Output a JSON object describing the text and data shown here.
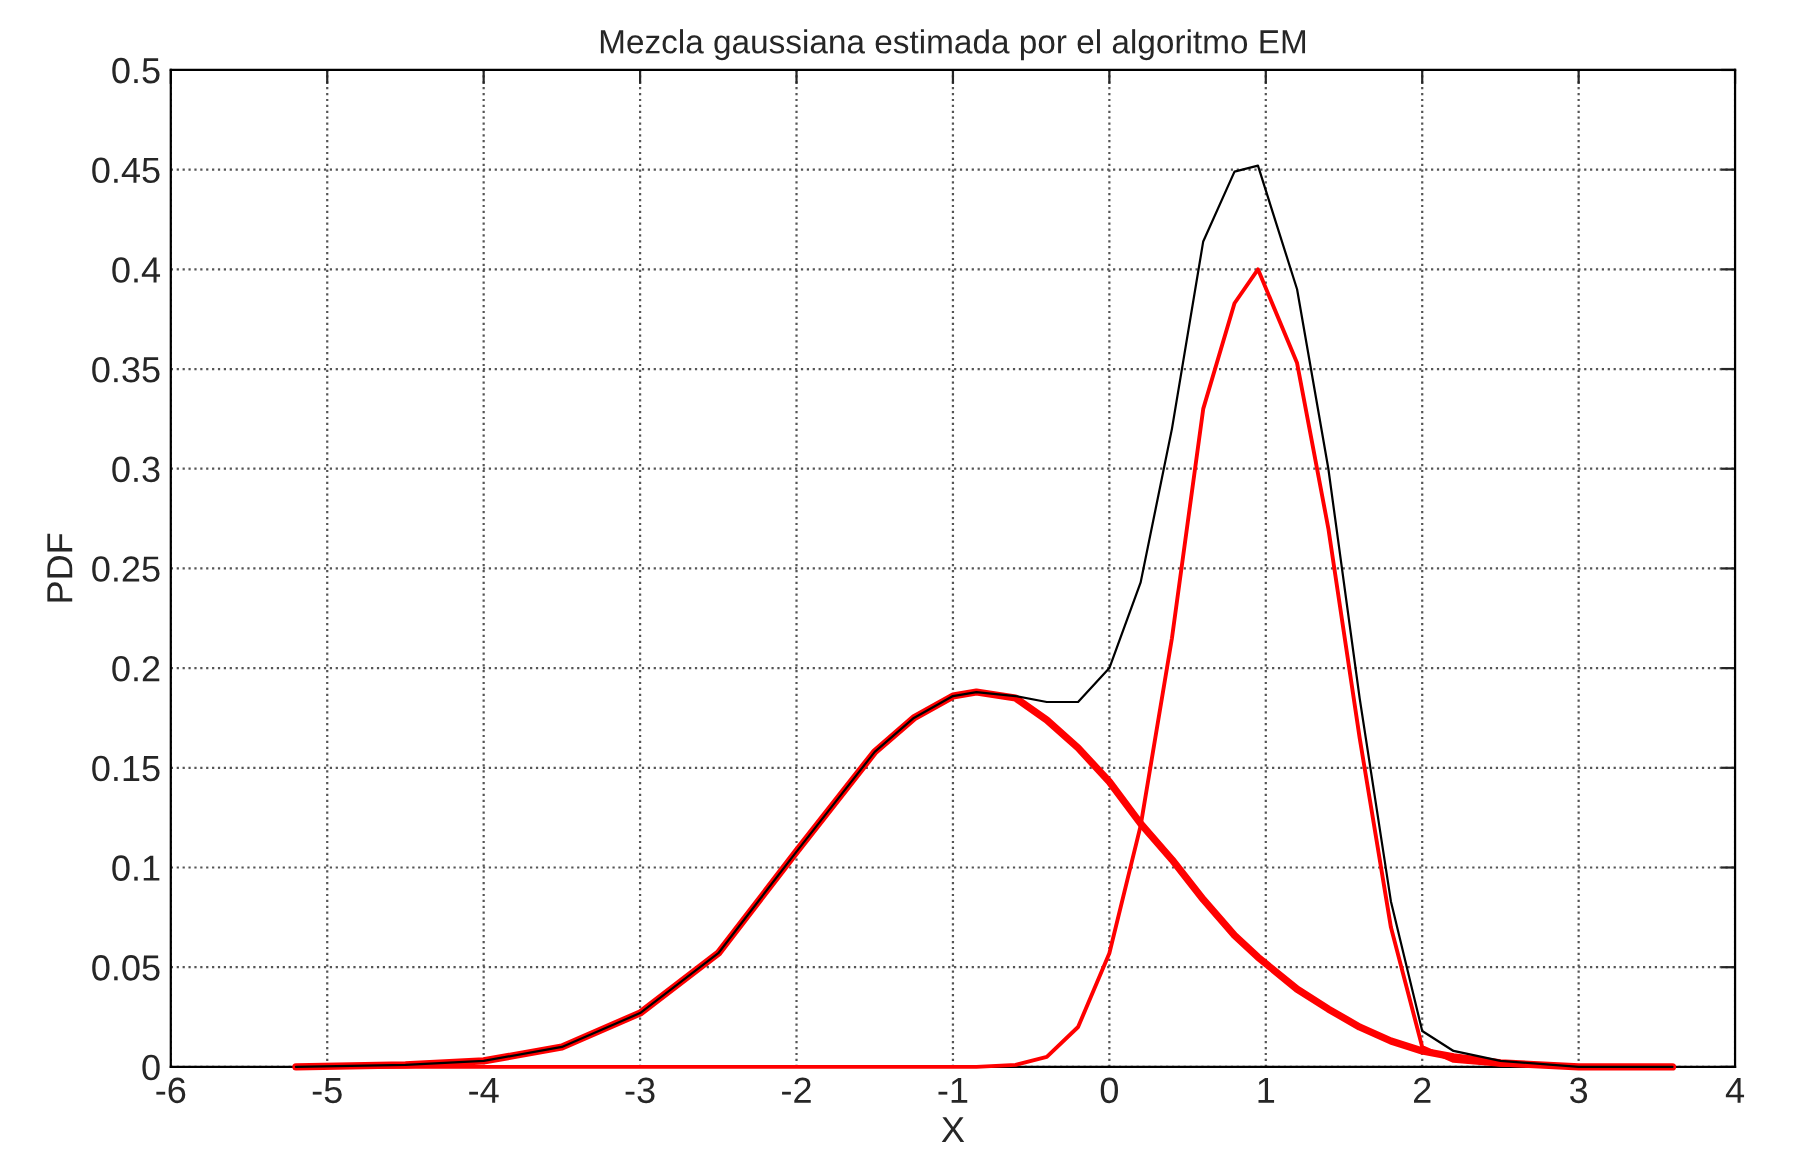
{
  "chart_data": {
    "type": "line",
    "title": "Mezcla gaussiana estimada por el algoritmo EM",
    "xlabel": "X",
    "ylabel": "PDF",
    "x": [
      -5.2,
      -4.5,
      -4,
      -3.5,
      -3,
      -2.5,
      -2,
      -1.5,
      -1.25,
      -1,
      -0.85,
      -0.6,
      -0.4,
      -0.2,
      0,
      0.2,
      0.4,
      0.6,
      0.8,
      0.95,
      1.2,
      1.4,
      1.6,
      1.8,
      2,
      2.2,
      2.5,
      3,
      3.6
    ],
    "series": [
      {
        "color": "#ff0000",
        "values": [
          0,
          0.001,
          0.003,
          0.01,
          0.027,
          0.057,
          0.108,
          0.158,
          0.175,
          0.186,
          0.188,
          0.185,
          0.174,
          0.16,
          0.143,
          0.122,
          0.104,
          0.084,
          0.066,
          0.055,
          0.039,
          0.029,
          0.02,
          0.013,
          0.008,
          0.005,
          0.002,
          0,
          0
        ]
      },
      {
        "color": "#ff0000",
        "values": [
          0,
          0,
          0,
          0,
          0,
          0,
          0,
          0,
          0,
          0,
          0,
          0.001,
          0.005,
          0.02,
          0.057,
          0.121,
          0.215,
          0.33,
          0.383,
          0.4,
          0.353,
          0.27,
          0.165,
          0.07,
          0.01,
          0.003,
          0.001,
          0,
          0
        ]
      },
      {
        "color": "#000000",
        "values": [
          0,
          0.001,
          0.003,
          0.01,
          0.027,
          0.057,
          0.108,
          0.158,
          0.175,
          0.186,
          0.188,
          0.186,
          0.183,
          0.183,
          0.2,
          0.243,
          0.32,
          0.414,
          0.449,
          0.452,
          0.39,
          0.3,
          0.185,
          0.083,
          0.018,
          0.008,
          0.003,
          0,
          0
        ]
      }
    ],
    "xlim": [
      -6,
      4
    ],
    "xticks": [
      -6,
      -5,
      -4,
      -3,
      -2,
      -1,
      0,
      1,
      2,
      3,
      4
    ],
    "ylim": [
      0,
      0.5
    ],
    "yticks": [
      0,
      0.05,
      0.1,
      0.15,
      0.2,
      0.25,
      0.3,
      0.35,
      0.4,
      0.45,
      0.5
    ],
    "grid": true,
    "line_style": "solid"
  }
}
